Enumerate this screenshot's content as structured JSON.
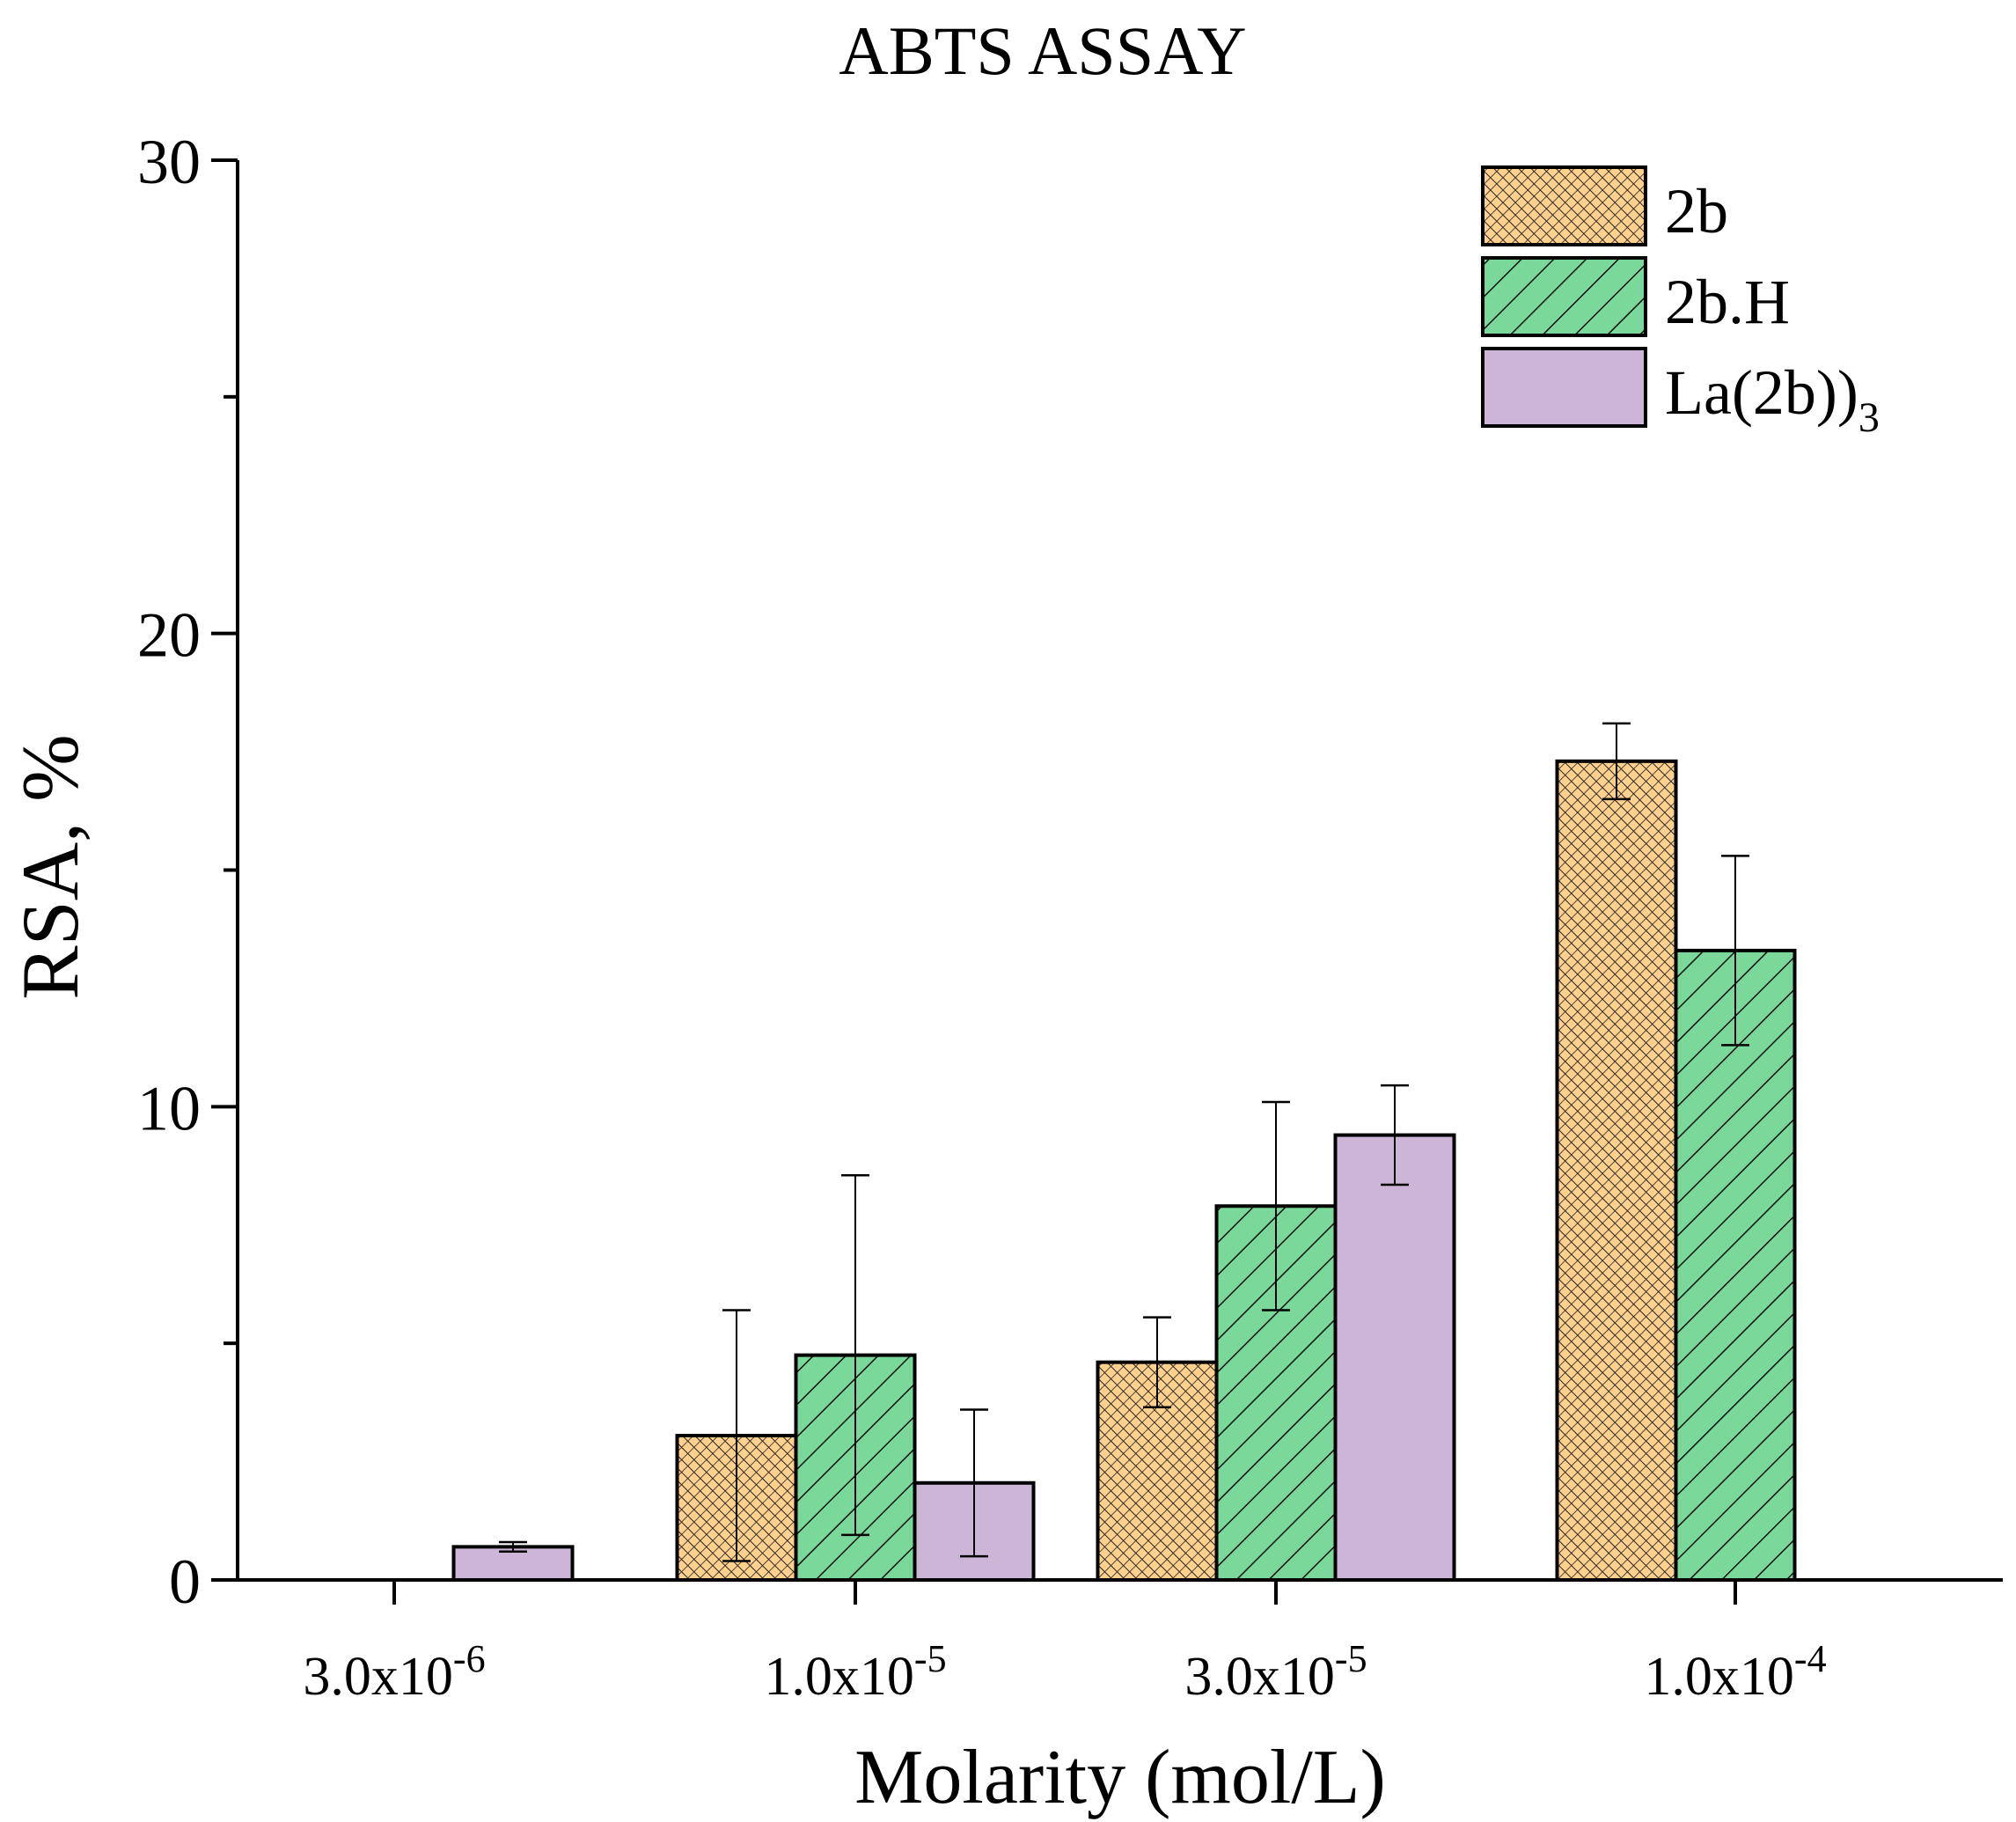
{
  "chart_data": {
    "type": "bar",
    "title": "ABTS ASSAY",
    "xlabel": "Molarity (mol/L)",
    "ylabel": "RSA, %",
    "ylim": [
      0,
      30
    ],
    "yticks": [
      "0",
      "10",
      "20",
      "30"
    ],
    "categories": [
      {
        "mantissa": "3.0x10",
        "exponent": "-6"
      },
      {
        "mantissa": "1.0x10",
        "exponent": "-5"
      },
      {
        "mantissa": "3.0x10",
        "exponent": "-5"
      },
      {
        "mantissa": "1.0x10",
        "exponent": "-4"
      }
    ],
    "legend_position": "top-right",
    "grid": false,
    "series": [
      {
        "name": "2b",
        "name_sub": "",
        "color": "#FFD08E",
        "pattern": "crosshatch",
        "values": [
          null,
          3.05,
          4.6,
          17.3
        ],
        "errors": [
          null,
          2.65,
          0.95,
          0.8
        ]
      },
      {
        "name": "2b.H",
        "name_sub": "",
        "color": "#7BD89B",
        "pattern": "diagonal",
        "values": [
          null,
          4.75,
          7.9,
          13.3
        ],
        "errors": [
          null,
          3.8,
          2.2,
          2.0
        ]
      },
      {
        "name": "La(2b)",
        "name_sub": "3",
        "color": "#CDB5D8",
        "pattern": "none",
        "values": [
          0.7,
          2.05,
          9.4,
          null
        ],
        "errors": [
          0.1,
          1.55,
          1.05,
          null
        ]
      }
    ]
  }
}
